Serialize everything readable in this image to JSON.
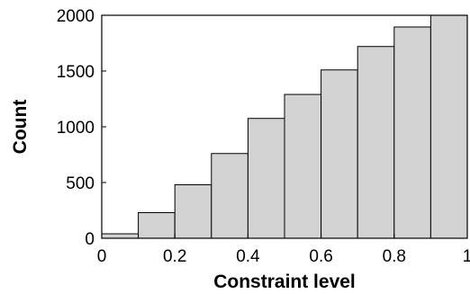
{
  "chart_data": {
    "type": "bar",
    "title": "",
    "xlabel": "Constraint level",
    "ylabel": "Count",
    "xlim": [
      0,
      1
    ],
    "ylim": [
      0,
      2000
    ],
    "x_ticks": [
      "0",
      "0.2",
      "0.4",
      "0.6",
      "0.8",
      "1"
    ],
    "y_ticks": [
      "0",
      "500",
      "1000",
      "1500",
      "2000"
    ],
    "grid": false,
    "bar_color": "#d3d3d3",
    "bins": [
      {
        "start": 0.0,
        "end": 0.1,
        "value": 40
      },
      {
        "start": 0.1,
        "end": 0.2,
        "value": 230
      },
      {
        "start": 0.2,
        "end": 0.3,
        "value": 480
      },
      {
        "start": 0.3,
        "end": 0.4,
        "value": 760
      },
      {
        "start": 0.4,
        "end": 0.5,
        "value": 1075
      },
      {
        "start": 0.5,
        "end": 0.6,
        "value": 1290
      },
      {
        "start": 0.6,
        "end": 0.7,
        "value": 1510
      },
      {
        "start": 0.7,
        "end": 0.8,
        "value": 1720
      },
      {
        "start": 0.8,
        "end": 0.9,
        "value": 1895
      },
      {
        "start": 0.9,
        "end": 1.0,
        "value": 2000
      }
    ]
  }
}
